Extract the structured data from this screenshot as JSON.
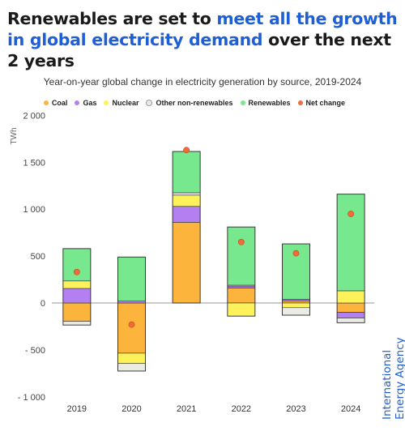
{
  "headline": {
    "part1": "Renewables are set to ",
    "highlight": "meet all the growth in global electricity demand",
    "part2": " over the next 2 years"
  },
  "chart_data": {
    "type": "bar",
    "stacked": true,
    "title": "Year-on-year global change in electricity generation by source, 2019-2024",
    "ylabel": "TWh",
    "ylim": [
      -1000,
      2000
    ],
    "yticks": [
      -1000,
      -500,
      0,
      500,
      1000,
      1500,
      2000
    ],
    "ytick_labels": [
      "- 1 000",
      "- 500",
      "0",
      "500",
      "1 000",
      "1 500",
      "2 000"
    ],
    "categories": [
      "2019",
      "2020",
      "2021",
      "2022",
      "2023",
      "2024"
    ],
    "series": [
      {
        "name": "Coal",
        "color": "#fdb43c",
        "values": [
          -195,
          -535,
          860,
          160,
          20,
          -100
        ]
      },
      {
        "name": "Gas",
        "color": "#b47ff0",
        "values": [
          155,
          20,
          170,
          20,
          20,
          -60
        ]
      },
      {
        "name": "Nuclear",
        "color": "#fdf25a",
        "values": [
          80,
          -110,
          120,
          -140,
          -50,
          130
        ]
      },
      {
        "name": "Other non-renewables",
        "color": "#ebebe6",
        "values": [
          -40,
          -80,
          25,
          10,
          -80,
          -50
        ]
      },
      {
        "name": "Renewables",
        "color": "#78e88f",
        "values": [
          345,
          470,
          440,
          620,
          590,
          1030
        ]
      }
    ],
    "net_change": {
      "name": "Net change",
      "color": "#f26b3a",
      "values": [
        330,
        -230,
        1630,
        650,
        530,
        950
      ]
    },
    "legend_position": "top",
    "grid": false
  },
  "brand": {
    "line1": "International",
    "line2": "Energy Agency"
  }
}
